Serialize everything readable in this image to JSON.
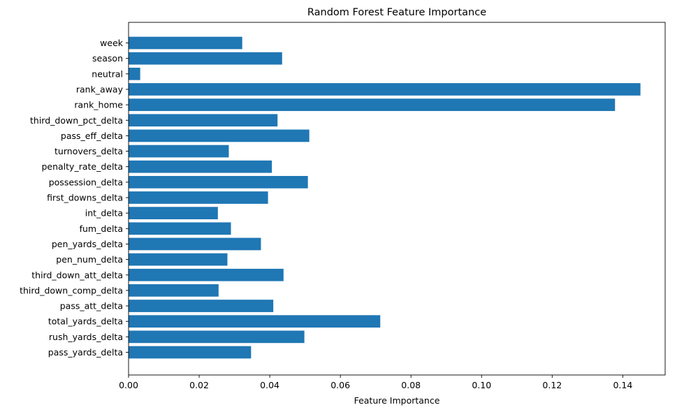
{
  "chart_data": {
    "type": "bar",
    "orientation": "horizontal",
    "title": "Random Forest Feature Importance",
    "xlabel": "Feature Importance",
    "ylabel": "",
    "xlim": [
      0,
      0.152
    ],
    "xticks": [
      0.0,
      0.02,
      0.04,
      0.06,
      0.08,
      0.1,
      0.12,
      0.14
    ],
    "xtick_labels": [
      "0.00",
      "0.02",
      "0.04",
      "0.06",
      "0.08",
      "0.10",
      "0.12",
      "0.14"
    ],
    "grid": false,
    "bar_color": "#1f77b4",
    "categories": [
      "pass_yards_delta",
      "rush_yards_delta",
      "total_yards_delta",
      "pass_att_delta",
      "third_down_comp_delta",
      "third_down_att_delta",
      "pen_num_delta",
      "pen_yards_delta",
      "fum_delta",
      "int_delta",
      "first_downs_delta",
      "possession_delta",
      "penalty_rate_delta",
      "turnovers_delta",
      "pass_eff_delta",
      "third_down_pct_delta",
      "rank_home",
      "rank_away",
      "neutral",
      "season",
      "week"
    ],
    "values": [
      0.0347,
      0.0498,
      0.0713,
      0.041,
      0.0255,
      0.0439,
      0.028,
      0.0375,
      0.029,
      0.0253,
      0.0395,
      0.0508,
      0.0406,
      0.0284,
      0.0512,
      0.0422,
      0.1378,
      0.145,
      0.0033,
      0.0435,
      0.0322
    ]
  }
}
